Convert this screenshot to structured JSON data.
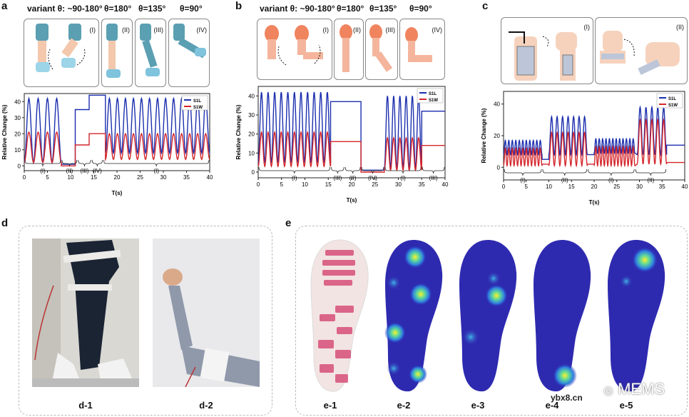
{
  "panels": {
    "a": {
      "label": "a",
      "headers": [
        "variant θ: ~90-180°",
        "θ=180°",
        "θ=135°",
        "θ=90°"
      ],
      "boxes": [
        "(I)",
        "(II)",
        "(III)",
        "(IV)"
      ],
      "phases": [
        "(I)",
        "(II)",
        "(III)",
        "(IV)",
        "(I)"
      ],
      "phase_bounds": [
        0,
        8,
        11.5,
        14.5,
        17,
        40
      ]
    },
    "b": {
      "label": "b",
      "headers": [
        "variant θ: ~90-180°",
        "θ=180°",
        "θ=135°",
        "θ=90°"
      ],
      "boxes": [
        "(I)",
        "(II)",
        "(III)",
        "(IV)"
      ],
      "phases": [
        "(I)",
        "(III)",
        "(II)",
        "(IV)",
        "(I)",
        "(III)"
      ],
      "phase_bounds": [
        0,
        15.5,
        18.5,
        22,
        27,
        35,
        40
      ]
    },
    "c": {
      "label": "c",
      "boxes": [
        "(I)",
        "(II)"
      ],
      "phases": [
        "(I)",
        "(II)",
        "(I)",
        "(II)"
      ],
      "phase_bounds": [
        0,
        8.5,
        18.5,
        29,
        36
      ]
    },
    "d": {
      "label": "d",
      "captions": [
        "d-1",
        "d-2"
      ]
    },
    "e": {
      "label": "e",
      "captions": [
        "e-1",
        "e-2",
        "e-3",
        "e-4",
        "e-5"
      ]
    }
  },
  "chart_data": [
    {
      "type": "line",
      "panel": "a",
      "xlabel": "T(s)",
      "ylabel": "Relative Change (%)",
      "xlim": [
        0,
        40
      ],
      "ylim": [
        -3,
        45
      ],
      "xticks": [
        0,
        5,
        10,
        15,
        20,
        25,
        30,
        35,
        40
      ],
      "yticks": [
        0,
        10,
        20,
        30,
        40
      ],
      "legend": "top-right",
      "series": [
        {
          "name": "S1L",
          "color": "#1c2fae",
          "segments": [
            {
              "kind": "osc",
              "t0": 0,
              "t1": 8,
              "n": 4,
              "lo": 2,
              "hi": 42
            },
            {
              "kind": "flat",
              "t0": 8,
              "t1": 11,
              "v": 1
            },
            {
              "kind": "flat",
              "t0": 11,
              "t1": 14,
              "v": 35
            },
            {
              "kind": "flat",
              "t0": 14,
              "t1": 17.5,
              "v": 44
            },
            {
              "kind": "osc",
              "t0": 17.5,
              "t1": 40,
              "n": 13,
              "lo": 8,
              "hi": 42
            }
          ]
        },
        {
          "name": "S1W",
          "color": "#d4262b",
          "segments": [
            {
              "kind": "osc",
              "t0": 0,
              "t1": 8,
              "n": 4,
              "lo": 2,
              "hi": 21
            },
            {
              "kind": "flat",
              "t0": 8,
              "t1": 11,
              "v": 0
            },
            {
              "kind": "flat",
              "t0": 11,
              "t1": 14,
              "v": 13
            },
            {
              "kind": "flat",
              "t0": 14,
              "t1": 17.5,
              "v": 20
            },
            {
              "kind": "osc",
              "t0": 17.5,
              "t1": 40,
              "n": 13,
              "lo": 4,
              "hi": 20
            }
          ]
        }
      ]
    },
    {
      "type": "line",
      "panel": "b",
      "xlabel": "T(s)",
      "ylabel": "Relative Change (%)",
      "xlim": [
        0,
        40
      ],
      "ylim": [
        -3,
        45
      ],
      "xticks": [
        0,
        5,
        10,
        15,
        20,
        25,
        30,
        35,
        40
      ],
      "yticks": [
        0,
        10,
        20,
        30,
        40
      ],
      "legend": "top-right",
      "series": [
        {
          "name": "S1L",
          "color": "#1c2fae",
          "segments": [
            {
              "kind": "osc",
              "t0": 0,
              "t1": 15.5,
              "n": 11,
              "lo": 5,
              "hi": 42
            },
            {
              "kind": "flat",
              "t0": 15.5,
              "t1": 22,
              "v": 37
            },
            {
              "kind": "flat",
              "t0": 22,
              "t1": 27,
              "v": 1
            },
            {
              "kind": "osc",
              "t0": 27,
              "t1": 35,
              "n": 6,
              "lo": 2,
              "hi": 40
            },
            {
              "kind": "flat",
              "t0": 35,
              "t1": 40,
              "v": 32
            }
          ]
        },
        {
          "name": "S1W",
          "color": "#d4262b",
          "segments": [
            {
              "kind": "osc",
              "t0": 0,
              "t1": 15.5,
              "n": 11,
              "lo": 3,
              "hi": 21
            },
            {
              "kind": "flat",
              "t0": 15.5,
              "t1": 22,
              "v": 16
            },
            {
              "kind": "flat",
              "t0": 22,
              "t1": 27,
              "v": 0
            },
            {
              "kind": "osc",
              "t0": 27,
              "t1": 35,
              "n": 6,
              "lo": 1,
              "hi": 18
            },
            {
              "kind": "flat",
              "t0": 35,
              "t1": 40,
              "v": 14
            }
          ]
        }
      ]
    },
    {
      "type": "line",
      "panel": "c",
      "xlabel": "T(s)",
      "ylabel": "Relative Change (%)",
      "xlim": [
        0,
        40
      ],
      "ylim": [
        -8,
        48
      ],
      "xticks": [
        0,
        5,
        10,
        15,
        20,
        25,
        30,
        35,
        40
      ],
      "yticks": [
        0,
        20,
        40
      ],
      "legend": "top-right",
      "series": [
        {
          "name": "S1L",
          "color": "#1c2fae",
          "segments": [
            {
              "kind": "osc",
              "t0": 0,
              "t1": 8.5,
              "n": 11,
              "lo": 8,
              "hi": 17
            },
            {
              "kind": "flat",
              "t0": 8.5,
              "t1": 10,
              "v": 5
            },
            {
              "kind": "osc",
              "t0": 10,
              "t1": 18.5,
              "n": 7,
              "lo": 8,
              "hi": 32
            },
            {
              "kind": "flat",
              "t0": 18.5,
              "t1": 20,
              "v": 8
            },
            {
              "kind": "osc",
              "t0": 20,
              "t1": 29,
              "n": 12,
              "lo": 9,
              "hi": 18
            },
            {
              "kind": "osc",
              "t0": 29.5,
              "t1": 36,
              "n": 5,
              "lo": 8,
              "hi": 38
            },
            {
              "kind": "flat",
              "t0": 36,
              "t1": 40,
              "v": 14
            }
          ]
        },
        {
          "name": "S1W",
          "color": "#d4262b",
          "segments": [
            {
              "kind": "osc",
              "t0": 0,
              "t1": 8.5,
              "n": 11,
              "lo": 1,
              "hi": 12
            },
            {
              "kind": "flat",
              "t0": 8.5,
              "t1": 10,
              "v": 2
            },
            {
              "kind": "osc",
              "t0": 10,
              "t1": 18.5,
              "n": 7,
              "lo": 1,
              "hi": 22
            },
            {
              "kind": "flat",
              "t0": 18.5,
              "t1": 20,
              "v": 2
            },
            {
              "kind": "osc",
              "t0": 20,
              "t1": 29,
              "n": 12,
              "lo": 1,
              "hi": 13
            },
            {
              "kind": "osc",
              "t0": 29.5,
              "t1": 36,
              "n": 5,
              "lo": 2,
              "hi": 30
            },
            {
              "kind": "flat",
              "t0": 36,
              "t1": 40,
              "v": 3
            }
          ]
        }
      ]
    }
  ],
  "watermark": {
    "text": "ybx8.cn",
    "brand": "MEMS"
  }
}
